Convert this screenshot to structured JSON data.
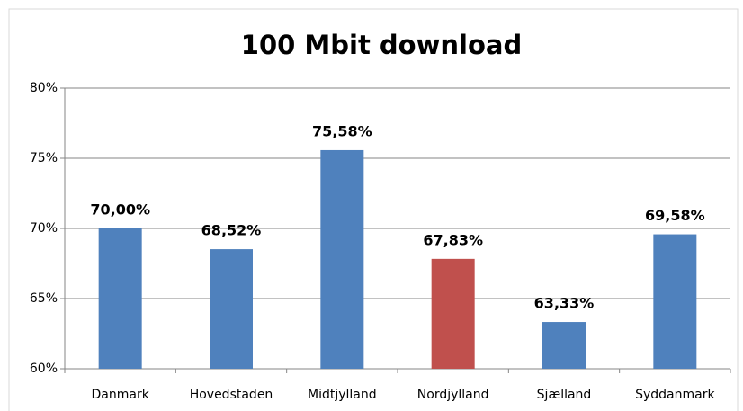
{
  "chart_data": {
    "type": "bar",
    "title": "100 Mbit download",
    "categories": [
      "Danmark",
      "Hovedstaden",
      "Midtjylland",
      "Nordjylland",
      "Sjælland",
      "Syddanmark"
    ],
    "values": [
      70.0,
      68.52,
      75.58,
      67.83,
      63.33,
      69.58
    ],
    "value_labels": [
      "70,00%",
      "68,52%",
      "75,58%",
      "67,83%",
      "63,33%",
      "69,58%"
    ],
    "colors": [
      "#4f81bd",
      "#4f81bd",
      "#4f81bd",
      "#c0504d",
      "#4f81bd",
      "#4f81bd"
    ],
    "ylim": [
      60,
      80
    ],
    "yticks": [
      {
        "value": 60,
        "label": "60%"
      },
      {
        "value": 65,
        "label": "65%"
      },
      {
        "value": 70,
        "label": "70%"
      },
      {
        "value": 75,
        "label": "75%"
      },
      {
        "value": 80,
        "label": "80%"
      }
    ],
    "grid": true
  }
}
